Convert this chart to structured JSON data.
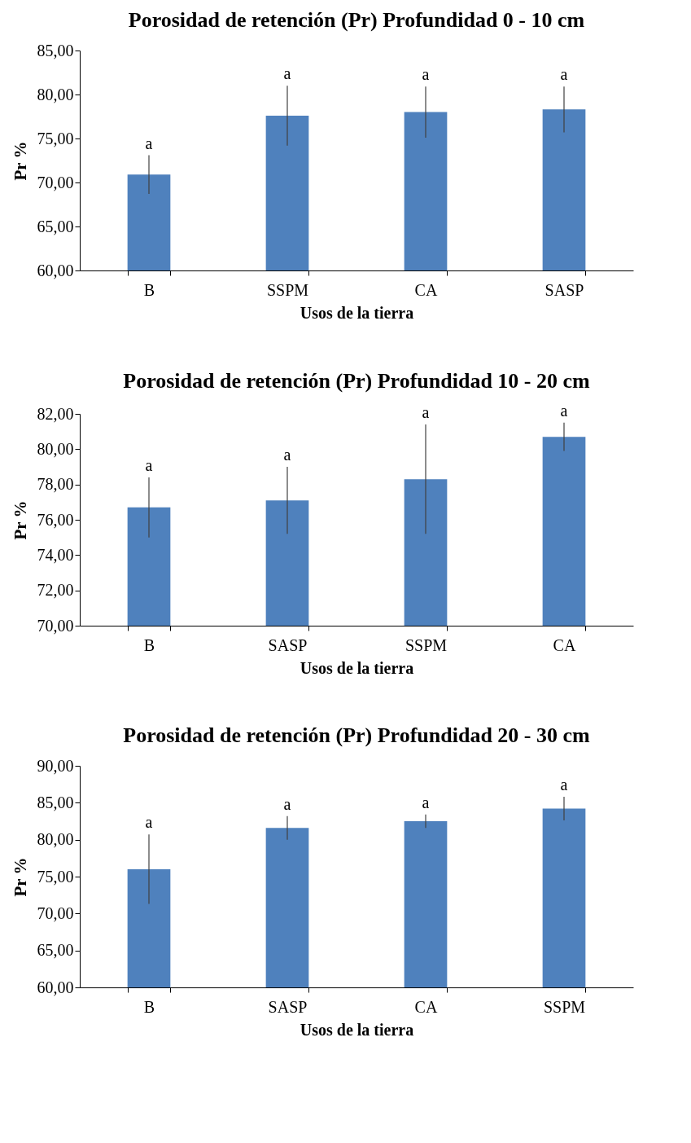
{
  "chart_data": [
    {
      "type": "bar",
      "title": "Porosidad de retención (Pr) Profundidad 0 - 10 cm",
      "xlabel": "Usos de la tierra",
      "ylabel": "Pr %",
      "categories": [
        "B",
        "SSPM",
        "CA",
        "SASP"
      ],
      "values": [
        70.9,
        77.6,
        78.0,
        78.3
      ],
      "errors": [
        2.2,
        3.4,
        2.9,
        2.6
      ],
      "color": "#4f81bd",
      "ylim": [
        60,
        85
      ],
      "yticks": [
        {
          "value": 60,
          "label": "60,00"
        },
        {
          "value": 65,
          "label": "65,00"
        },
        {
          "value": 70,
          "label": "70,00"
        },
        {
          "value": 75,
          "label": "75,00"
        },
        {
          "value": 80,
          "label": "80,00"
        },
        {
          "value": 85,
          "label": "85,00"
        }
      ],
      "annotations": [
        {
          "text": "a",
          "x": "B",
          "y": 73.1
        },
        {
          "text": "a",
          "x": "SSPM",
          "y": 81.0
        },
        {
          "text": "a",
          "x": "CA",
          "y": 80.9
        },
        {
          "text": "a",
          "x": "SASP",
          "y": 80.9
        }
      ]
    },
    {
      "type": "bar",
      "title": "Porosidad de retención (Pr) Profundidad 10 - 20 cm",
      "xlabel": "Usos de la tierra",
      "ylabel": "Pr %",
      "categories": [
        "B",
        "SASP",
        "SSPM",
        "CA"
      ],
      "values": [
        76.7,
        77.1,
        78.3,
        80.7
      ],
      "errors": [
        1.7,
        1.9,
        3.1,
        0.8
      ],
      "color": "#4f81bd",
      "ylim": [
        70,
        82
      ],
      "yticks": [
        {
          "value": 70,
          "label": "70,00"
        },
        {
          "value": 72,
          "label": "72,00"
        },
        {
          "value": 74,
          "label": "74,00"
        },
        {
          "value": 76,
          "label": "76,00"
        },
        {
          "value": 78,
          "label": "78,00"
        },
        {
          "value": 80,
          "label": "80,00"
        },
        {
          "value": 82,
          "label": "82,00"
        }
      ],
      "annotations": [
        {
          "text": "a",
          "x": "B",
          "y": 78.4
        },
        {
          "text": "a",
          "x": "SASP",
          "y": 79.0
        },
        {
          "text": "a",
          "x": "SSPM",
          "y": 81.4
        },
        {
          "text": "a",
          "x": "CA",
          "y": 81.5
        }
      ]
    },
    {
      "type": "bar",
      "title": "Porosidad de retención (Pr) Profundidad 20 - 30 cm",
      "xlabel": "Usos de la tierra",
      "ylabel": "Pr %",
      "categories": [
        "B",
        "SASP",
        "CA",
        "SSPM"
      ],
      "values": [
        76.0,
        81.6,
        82.5,
        84.2
      ],
      "errors": [
        4.7,
        1.6,
        0.9,
        1.6
      ],
      "color": "#4f81bd",
      "ylim": [
        60,
        90
      ],
      "yticks": [
        {
          "value": 60,
          "label": "60,00"
        },
        {
          "value": 65,
          "label": "65,00"
        },
        {
          "value": 70,
          "label": "70,00"
        },
        {
          "value": 75,
          "label": "75,00"
        },
        {
          "value": 80,
          "label": "80,00"
        },
        {
          "value": 85,
          "label": "85,00"
        },
        {
          "value": 90,
          "label": "90,00"
        }
      ],
      "annotations": [
        {
          "text": "a",
          "x": "B",
          "y": 80.7
        },
        {
          "text": "a",
          "x": "SASP",
          "y": 83.2
        },
        {
          "text": "a",
          "x": "CA",
          "y": 83.4
        },
        {
          "text": "a",
          "x": "SSPM",
          "y": 85.8
        }
      ]
    }
  ]
}
